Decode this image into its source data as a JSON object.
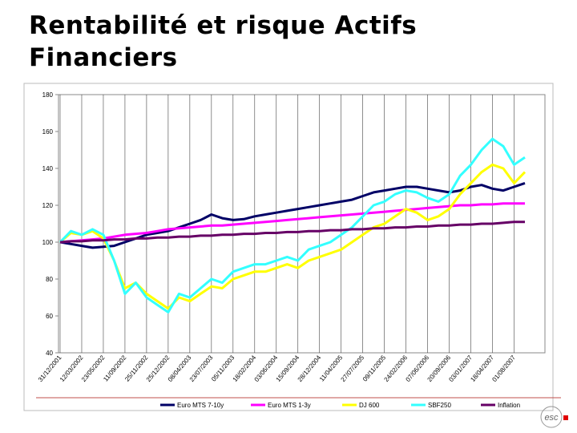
{
  "title": "Rentabilité et risque Actifs Financiers",
  "logo": "esc",
  "chart_data": {
    "type": "line",
    "categories": [
      "31/12/2001",
      null,
      "12/03/2002",
      null,
      "23/05/2002",
      null,
      "11/09/2002",
      null,
      "25/11/2002",
      null,
      "25/12/2002",
      null,
      "08/04/2003",
      null,
      "23/07/2003",
      null,
      "05/11/2003",
      null,
      "18/02/2004",
      null,
      "03/06/2004",
      null,
      "15/09/2004",
      null,
      "28/12/2004",
      null,
      "11/04/2005",
      null,
      "27/07/2005",
      null,
      "09/11/2005",
      null,
      "24/02/2006",
      null,
      "07/06/2006",
      null,
      "20/09/2006",
      null,
      "03/01/2007",
      null,
      "18/04/2007",
      null,
      "01/08/2007",
      null
    ],
    "ylim": [
      40,
      180
    ],
    "yticks": [
      40,
      60,
      80,
      100,
      120,
      140,
      160,
      180
    ],
    "series": [
      {
        "name": "Euro MTS 7-10y",
        "color": "#000066",
        "values": [
          100,
          99,
          98,
          97,
          97.5,
          98,
          100,
          102,
          104,
          105,
          106,
          108,
          110,
          112,
          115,
          113,
          112,
          112.5,
          114,
          115,
          116,
          117,
          118,
          119,
          120,
          121,
          122,
          123,
          125,
          127,
          128,
          129,
          130,
          130,
          129,
          128,
          127,
          128,
          130,
          131,
          129,
          128,
          130,
          132
        ]
      },
      {
        "name": "Euro MTS 1-3y",
        "color": "#ff00ff",
        "values": [
          100,
          100.5,
          101,
          101.5,
          102,
          103,
          104,
          104.5,
          105,
          106,
          107,
          107.5,
          108,
          108.5,
          109,
          109,
          109.5,
          110,
          110.5,
          111,
          111.5,
          112,
          112.5,
          113,
          113.5,
          114,
          114.5,
          115,
          115.5,
          116,
          116.5,
          117,
          117.5,
          118,
          118.5,
          119,
          119.5,
          120,
          120,
          120.5,
          120.5,
          121,
          121,
          121
        ]
      },
      {
        "name": "DJ 600",
        "color": "#ffff00",
        "values": [
          100,
          105,
          104,
          106,
          102,
          90,
          75,
          78,
          72,
          68,
          64,
          70,
          68,
          72,
          76,
          75,
          80,
          82,
          84,
          84,
          86,
          88,
          86,
          90,
          92,
          94,
          96,
          100,
          104,
          108,
          110,
          114,
          118,
          116,
          112,
          114,
          118,
          126,
          132,
          138,
          142,
          140,
          132,
          138
        ]
      },
      {
        "name": "SBF250",
        "color": "#33ffff",
        "values": [
          100,
          106,
          104,
          107,
          104,
          90,
          72,
          78,
          70,
          66,
          62,
          72,
          70,
          75,
          80,
          78,
          84,
          86,
          88,
          88,
          90,
          92,
          90,
          96,
          98,
          100,
          104,
          108,
          114,
          120,
          122,
          126,
          128,
          127,
          124,
          122,
          126,
          136,
          142,
          150,
          156,
          152,
          142,
          146
        ]
      },
      {
        "name": "Inflation",
        "color": "#660066",
        "values": [
          100,
          100.5,
          100.5,
          101,
          101,
          101.5,
          101.5,
          102,
          102,
          102.5,
          102.5,
          103,
          103,
          103.5,
          103.5,
          104,
          104,
          104.5,
          104.5,
          105,
          105,
          105.5,
          105.5,
          106,
          106,
          106.5,
          106.5,
          107,
          107,
          107.5,
          107.5,
          108,
          108,
          108.5,
          108.5,
          109,
          109,
          109.5,
          109.5,
          110,
          110,
          110.5,
          111,
          111
        ]
      }
    ]
  }
}
